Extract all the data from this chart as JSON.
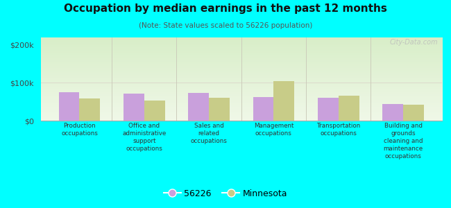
{
  "title": "Occupation by median earnings in the past 12 months",
  "subtitle": "(Note: State values scaled to 56226 population)",
  "categories": [
    "Production\noccupations",
    "Office and\nadministrative\nsupport\noccupations",
    "Sales and\nrelated\noccupations",
    "Management\noccupations",
    "Transportation\noccupations",
    "Building and\ngrounds\ncleaning and\nmaintenance\noccupations"
  ],
  "values_56226": [
    75000,
    72000,
    74000,
    62000,
    60000,
    44000
  ],
  "values_minnesota": [
    58000,
    54000,
    60000,
    105000,
    66000,
    42000
  ],
  "color_56226": "#c9a0dc",
  "color_minnesota": "#c8cc88",
  "ylim": [
    0,
    220000
  ],
  "yticks": [
    0,
    100000,
    200000
  ],
  "ytick_labels": [
    "$0",
    "$100k",
    "$200k"
  ],
  "bg_color_top": "#d8eec8",
  "bg_color_bottom": "#f0f8e8",
  "outer_bg": "#00ffff",
  "watermark": "City-Data.com",
  "legend_label_56226": "56226",
  "legend_label_minnesota": "Minnesota"
}
